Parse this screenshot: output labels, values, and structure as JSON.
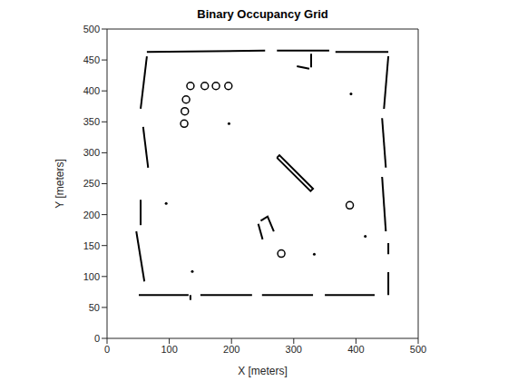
{
  "chart_data": {
    "type": "line",
    "title": "Binary Occupancy Grid",
    "x_label": "X [meters]",
    "y_label": "Y [meters]",
    "xlim": [
      0,
      500
    ],
    "ylim": [
      0,
      500
    ],
    "xticks": [
      0,
      100,
      200,
      300,
      400,
      500
    ],
    "yticks": [
      0,
      50,
      100,
      150,
      200,
      250,
      300,
      350,
      400,
      450,
      500
    ],
    "grid": false,
    "color": "#000000",
    "series": [
      {
        "type": "line",
        "line_style": "solid",
        "x": [
          51,
          131
        ],
        "y": [
          70,
          70
        ]
      },
      {
        "type": "line",
        "line_style": "solid",
        "x": [
          134,
          134
        ],
        "y": [
          62,
          70
        ]
      },
      {
        "type": "line",
        "line_style": "solid",
        "x": [
          150,
          233
        ],
        "y": [
          70,
          70
        ]
      },
      {
        "type": "line",
        "line_style": "solid",
        "x": [
          249,
          331
        ],
        "y": [
          70,
          70
        ]
      },
      {
        "type": "line",
        "line_style": "solid",
        "x": [
          350,
          430
        ],
        "y": [
          70,
          70
        ]
      },
      {
        "type": "line",
        "line_style": "solid",
        "x": [
          64,
          254
        ],
        "y": [
          463,
          465
        ]
      },
      {
        "type": "line",
        "line_style": "solid",
        "x": [
          273,
          357
        ],
        "y": [
          465,
          465
        ]
      },
      {
        "type": "line",
        "line_style": "solid",
        "x": [
          367,
          452
        ],
        "y": [
          463,
          463
        ]
      },
      {
        "type": "line",
        "line_style": "solid",
        "x": [
          305,
          325
        ],
        "y": [
          440,
          436
        ]
      },
      {
        "type": "line",
        "line_style": "solid",
        "x": [
          328,
          328
        ],
        "y": [
          438,
          460
        ]
      },
      {
        "type": "line",
        "line_style": "solid",
        "x": [
          64,
          54
        ],
        "y": [
          456,
          371
        ]
      },
      {
        "type": "line",
        "line_style": "solid",
        "x": [
          58,
          66
        ],
        "y": [
          342,
          276
        ]
      },
      {
        "type": "line",
        "line_style": "solid",
        "x": [
          54,
          54
        ],
        "y": [
          224,
          183
        ]
      },
      {
        "type": "line",
        "line_style": "solid",
        "x": [
          47,
          60
        ],
        "y": [
          173,
          92
        ]
      },
      {
        "type": "line",
        "line_style": "solid",
        "x": [
          452,
          445
        ],
        "y": [
          456,
          371
        ]
      },
      {
        "type": "line",
        "line_style": "solid",
        "x": [
          442,
          448
        ],
        "y": [
          356,
          276
        ]
      },
      {
        "type": "line",
        "line_style": "solid",
        "x": [
          442,
          448
        ],
        "y": [
          261,
          173
        ]
      },
      {
        "type": "line",
        "line_style": "solid",
        "x": [
          452,
          452
        ],
        "y": [
          154,
          136
        ]
      },
      {
        "type": "line",
        "line_style": "solid",
        "x": [
          452,
          452
        ],
        "y": [
          107,
          70
        ]
      },
      {
        "type": "line",
        "line_style": "solid",
        "x": [
          273,
          277,
          331,
          327,
          273
        ],
        "y": [
          292,
          296,
          242,
          238,
          292
        ]
      },
      {
        "type": "line",
        "line_style": "solid",
        "x": [
          243,
          250
        ],
        "y": [
          185,
          160
        ]
      },
      {
        "type": "line",
        "line_style": "solid",
        "x": [
          247,
          258,
          268
        ],
        "y": [
          190,
          197,
          173
        ]
      },
      {
        "type": "scatter",
        "marker": "circle",
        "x": [
          134,
          157,
          175,
          195,
          127,
          125,
          124,
          390,
          280
        ],
        "y": [
          408,
          408,
          408,
          408,
          386,
          367,
          347,
          215,
          137
        ]
      },
      {
        "type": "scatter",
        "marker": "point",
        "x": [
          392,
          196,
          95,
          137,
          333,
          415
        ],
        "y": [
          395,
          347,
          218,
          108,
          136,
          165
        ]
      }
    ]
  }
}
